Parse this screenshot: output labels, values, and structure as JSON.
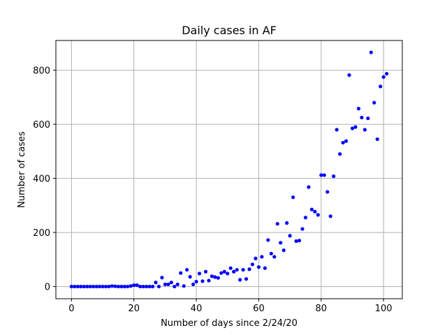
{
  "chart_data": {
    "type": "scatter",
    "title": "Daily cases in AF",
    "xlabel": "Number of days since 2/24/20",
    "ylabel": "Number of cases",
    "xlim": [
      -5,
      106
    ],
    "ylim": [
      -45,
      910
    ],
    "xticks": [
      0,
      20,
      40,
      60,
      80,
      100
    ],
    "yticks": [
      0,
      200,
      400,
      600,
      800
    ],
    "grid": true,
    "marker_color": "#0000ff",
    "series": [
      {
        "points": [
          [
            0,
            0
          ],
          [
            1,
            0
          ],
          [
            2,
            0
          ],
          [
            3,
            0
          ],
          [
            4,
            0
          ],
          [
            5,
            0
          ],
          [
            6,
            0
          ],
          [
            7,
            0
          ],
          [
            8,
            0
          ],
          [
            9,
            0
          ],
          [
            10,
            0
          ],
          [
            11,
            0
          ],
          [
            12,
            0
          ],
          [
            13,
            2
          ],
          [
            14,
            1
          ],
          [
            15,
            0
          ],
          [
            16,
            0
          ],
          [
            17,
            0
          ],
          [
            18,
            0
          ],
          [
            19,
            2
          ],
          [
            20,
            5
          ],
          [
            21,
            5
          ],
          [
            22,
            0
          ],
          [
            23,
            0
          ],
          [
            24,
            0
          ],
          [
            25,
            0
          ],
          [
            26,
            0
          ],
          [
            27,
            15
          ],
          [
            28,
            0
          ],
          [
            29,
            33
          ],
          [
            30,
            8
          ],
          [
            31,
            8
          ],
          [
            32,
            15
          ],
          [
            33,
            0
          ],
          [
            34,
            8
          ],
          [
            35,
            50
          ],
          [
            36,
            2
          ],
          [
            37,
            62
          ],
          [
            38,
            36
          ],
          [
            39,
            8
          ],
          [
            40,
            18
          ],
          [
            41,
            48
          ],
          [
            42,
            20
          ],
          [
            43,
            55
          ],
          [
            44,
            22
          ],
          [
            45,
            38
          ],
          [
            46,
            35
          ],
          [
            47,
            32
          ],
          [
            48,
            50
          ],
          [
            49,
            55
          ],
          [
            50,
            48
          ],
          [
            51,
            68
          ],
          [
            52,
            55
          ],
          [
            53,
            62
          ],
          [
            54,
            25
          ],
          [
            55,
            62
          ],
          [
            56,
            28
          ],
          [
            57,
            64
          ],
          [
            58,
            82
          ],
          [
            59,
            104
          ],
          [
            60,
            72
          ],
          [
            61,
            110
          ],
          [
            62,
            68
          ],
          [
            63,
            172
          ],
          [
            64,
            122
          ],
          [
            65,
            110
          ],
          [
            66,
            232
          ],
          [
            67,
            162
          ],
          [
            68,
            134
          ],
          [
            69,
            235
          ],
          [
            70,
            188
          ],
          [
            71,
            330
          ],
          [
            72,
            168
          ],
          [
            73,
            170
          ],
          [
            74,
            213
          ],
          [
            75,
            255
          ],
          [
            76,
            368
          ],
          [
            77,
            285
          ],
          [
            78,
            277
          ],
          [
            79,
            265
          ],
          [
            80,
            412
          ],
          [
            81,
            412
          ],
          [
            82,
            350
          ],
          [
            83,
            260
          ],
          [
            84,
            408
          ],
          [
            85,
            580
          ],
          [
            86,
            490
          ],
          [
            87,
            532
          ],
          [
            88,
            538
          ],
          [
            89,
            782
          ],
          [
            90,
            585
          ],
          [
            91,
            590
          ],
          [
            92,
            658
          ],
          [
            93,
            625
          ],
          [
            94,
            580
          ],
          [
            95,
            622
          ],
          [
            96,
            866
          ],
          [
            97,
            680
          ],
          [
            98,
            545
          ],
          [
            99,
            740
          ],
          [
            100,
            775
          ],
          [
            101,
            787
          ]
        ]
      }
    ]
  }
}
